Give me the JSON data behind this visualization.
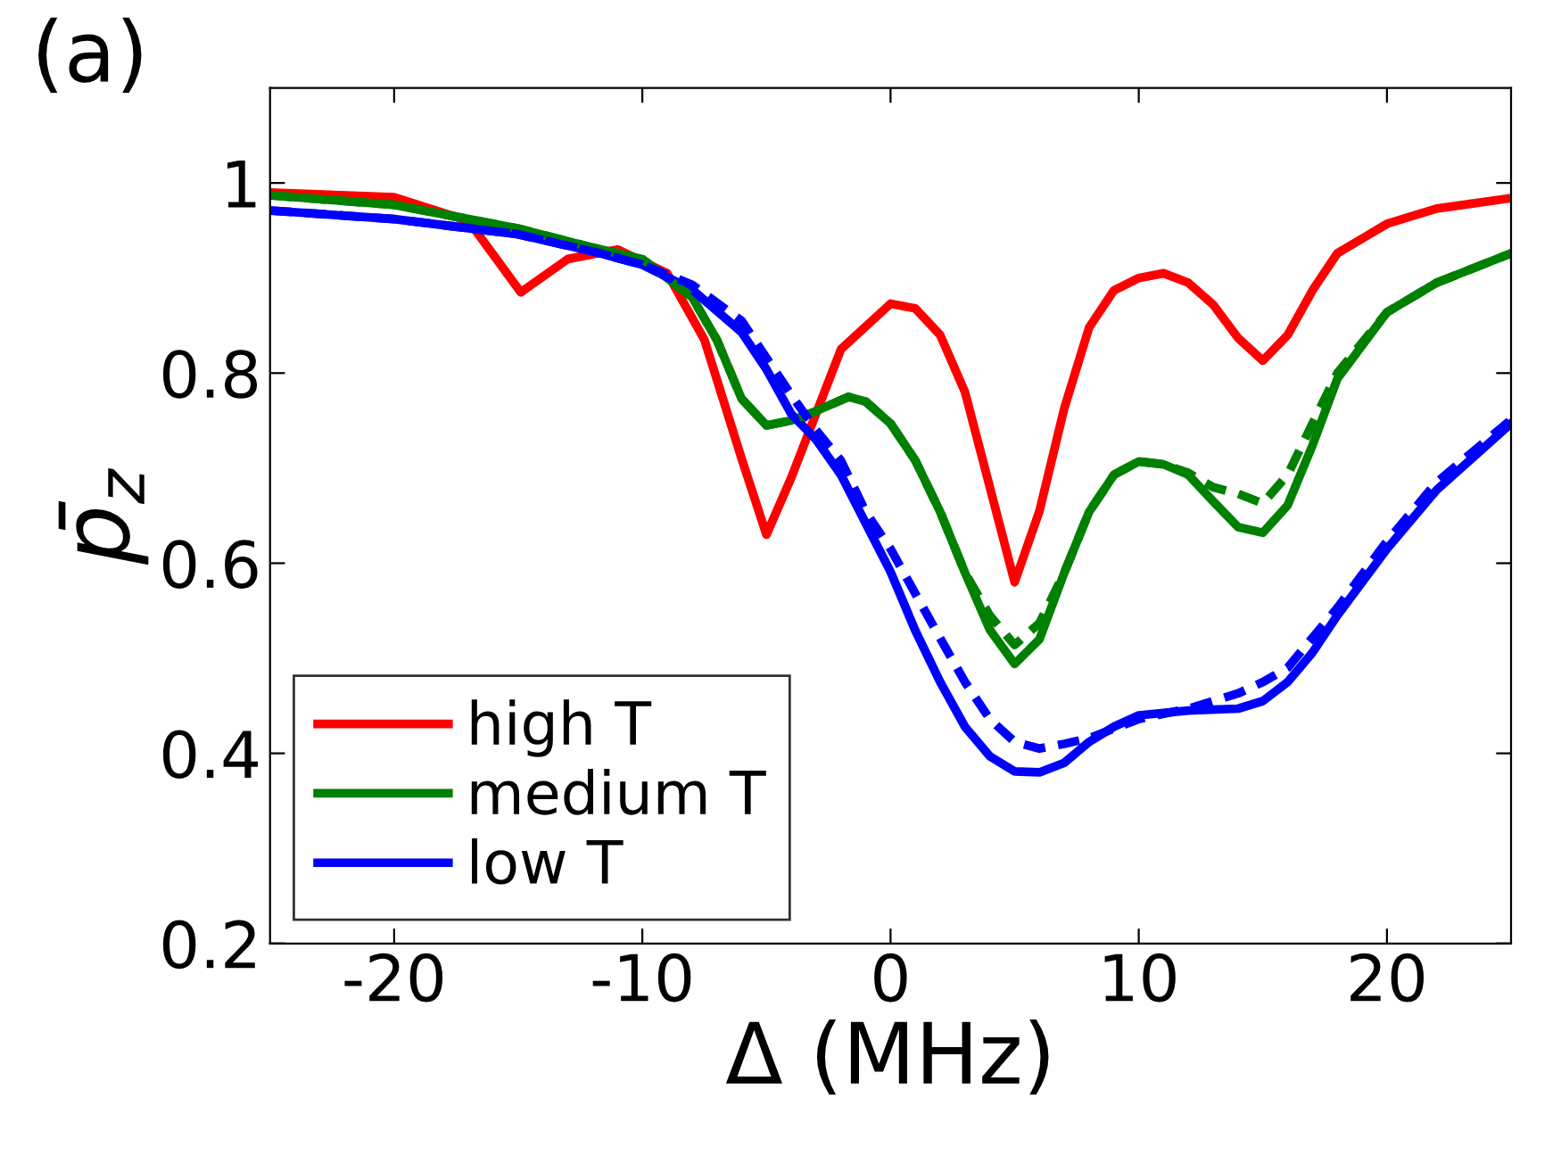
{
  "chart_data": {
    "type": "line",
    "xlabel": "Δ (MHz)",
    "ylabel": "p̄$_{z}$",
    "annotations": [
      "(a)"
    ],
    "xlim": [
      -25,
      25
    ],
    "ylim": [
      0.2,
      1.1
    ],
    "xticks": [
      -20,
      -10,
      0,
      10,
      20
    ],
    "yticks": [
      0.2,
      0.4,
      0.6,
      0.8,
      1
    ],
    "grid": false,
    "legend": "bottom left",
    "marker": "none",
    "series": [
      {
        "name": "high T",
        "color": "#ff0000",
        "line_style": "solid",
        "x": [
          -25,
          -20,
          -17,
          -14.9,
          -13,
          -11,
          -9,
          -7.5,
          -6,
          -5,
          -4,
          -2,
          0,
          1,
          2,
          3,
          4,
          5,
          6,
          7,
          8,
          9,
          10,
          11,
          12,
          13,
          14,
          15,
          16,
          17,
          18,
          20,
          22,
          25
        ],
        "values": [
          0.99,
          0.985,
          0.96,
          0.885,
          0.92,
          0.93,
          0.905,
          0.835,
          0.71,
          0.63,
          0.69,
          0.825,
          0.873,
          0.868,
          0.84,
          0.78,
          0.68,
          0.58,
          0.655,
          0.763,
          0.848,
          0.887,
          0.9,
          0.905,
          0.895,
          0.872,
          0.837,
          0.813,
          0.84,
          0.887,
          0.926,
          0.957,
          0.973,
          0.984
        ]
      },
      {
        "name": "medium T",
        "color": "#008000",
        "line_style": "solid",
        "x": [
          -25,
          -20,
          -15,
          -12,
          -10,
          -8,
          -7,
          -6,
          -5,
          -4,
          -3,
          -1.7,
          -1,
          0,
          1,
          2,
          3,
          4,
          5,
          6,
          7,
          8,
          9,
          10,
          11,
          12,
          13,
          14,
          15,
          16,
          17,
          18,
          20,
          22,
          25
        ],
        "values": [
          0.987,
          0.977,
          0.952,
          0.932,
          0.92,
          0.88,
          0.835,
          0.773,
          0.745,
          0.75,
          0.76,
          0.775,
          0.77,
          0.747,
          0.708,
          0.654,
          0.59,
          0.53,
          0.494,
          0.52,
          0.59,
          0.654,
          0.693,
          0.707,
          0.704,
          0.693,
          0.665,
          0.638,
          0.632,
          0.661,
          0.724,
          0.794,
          0.864,
          0.895,
          0.926
        ]
      },
      {
        "name": "low T",
        "color": "#0000ff",
        "line_style": "solid",
        "x": [
          -25,
          -20,
          -15,
          -12,
          -10,
          -8,
          -6,
          -5,
          -4,
          -3,
          -2,
          -1,
          0,
          1,
          2,
          3,
          4,
          5,
          6,
          7,
          8,
          9,
          10,
          12,
          14,
          15,
          16,
          17,
          18,
          20,
          22,
          25
        ],
        "values": [
          0.971,
          0.962,
          0.946,
          0.928,
          0.914,
          0.888,
          0.843,
          0.804,
          0.757,
          0.73,
          0.693,
          0.642,
          0.591,
          0.529,
          0.475,
          0.428,
          0.397,
          0.381,
          0.38,
          0.39,
          0.412,
          0.428,
          0.44,
          0.445,
          0.447,
          0.455,
          0.475,
          0.506,
          0.545,
          0.615,
          0.677,
          0.747
        ]
      },
      {
        "color": "#008000",
        "line_style": "dashed",
        "x": [
          -25,
          -20,
          -15,
          -12,
          -10,
          -8,
          -7,
          -6,
          -5,
          -4,
          -3,
          -1.7,
          -1,
          0,
          1,
          2,
          3,
          4,
          5,
          6,
          7,
          8,
          9,
          10,
          11,
          12,
          13,
          14,
          15,
          16,
          17,
          18,
          20,
          22,
          25
        ],
        "values": [
          0.987,
          0.977,
          0.952,
          0.932,
          0.92,
          0.88,
          0.835,
          0.773,
          0.745,
          0.75,
          0.76,
          0.775,
          0.77,
          0.747,
          0.708,
          0.654,
          0.59,
          0.545,
          0.514,
          0.537,
          0.59,
          0.654,
          0.693,
          0.707,
          0.704,
          0.695,
          0.68,
          0.673,
          0.663,
          0.693,
          0.747,
          0.8,
          0.864,
          0.895,
          0.926
        ]
      },
      {
        "color": "#0000ff",
        "line_style": "dashed",
        "x": [
          -25,
          -20,
          -15,
          -12,
          -10,
          -8,
          -6,
          -4,
          -3,
          -2,
          -1,
          0,
          1,
          2,
          3,
          4,
          5,
          6,
          7,
          8,
          10,
          12,
          14,
          15,
          16,
          18,
          20,
          22,
          25
        ],
        "values": [
          0.971,
          0.962,
          0.946,
          0.928,
          0.914,
          0.893,
          0.855,
          0.777,
          0.74,
          0.708,
          0.654,
          0.615,
          0.568,
          0.521,
          0.475,
          0.436,
          0.412,
          0.405,
          0.41,
          0.416,
          0.436,
          0.447,
          0.463,
          0.475,
          0.49,
          0.553,
          0.623,
          0.685,
          0.751
        ]
      }
    ]
  }
}
